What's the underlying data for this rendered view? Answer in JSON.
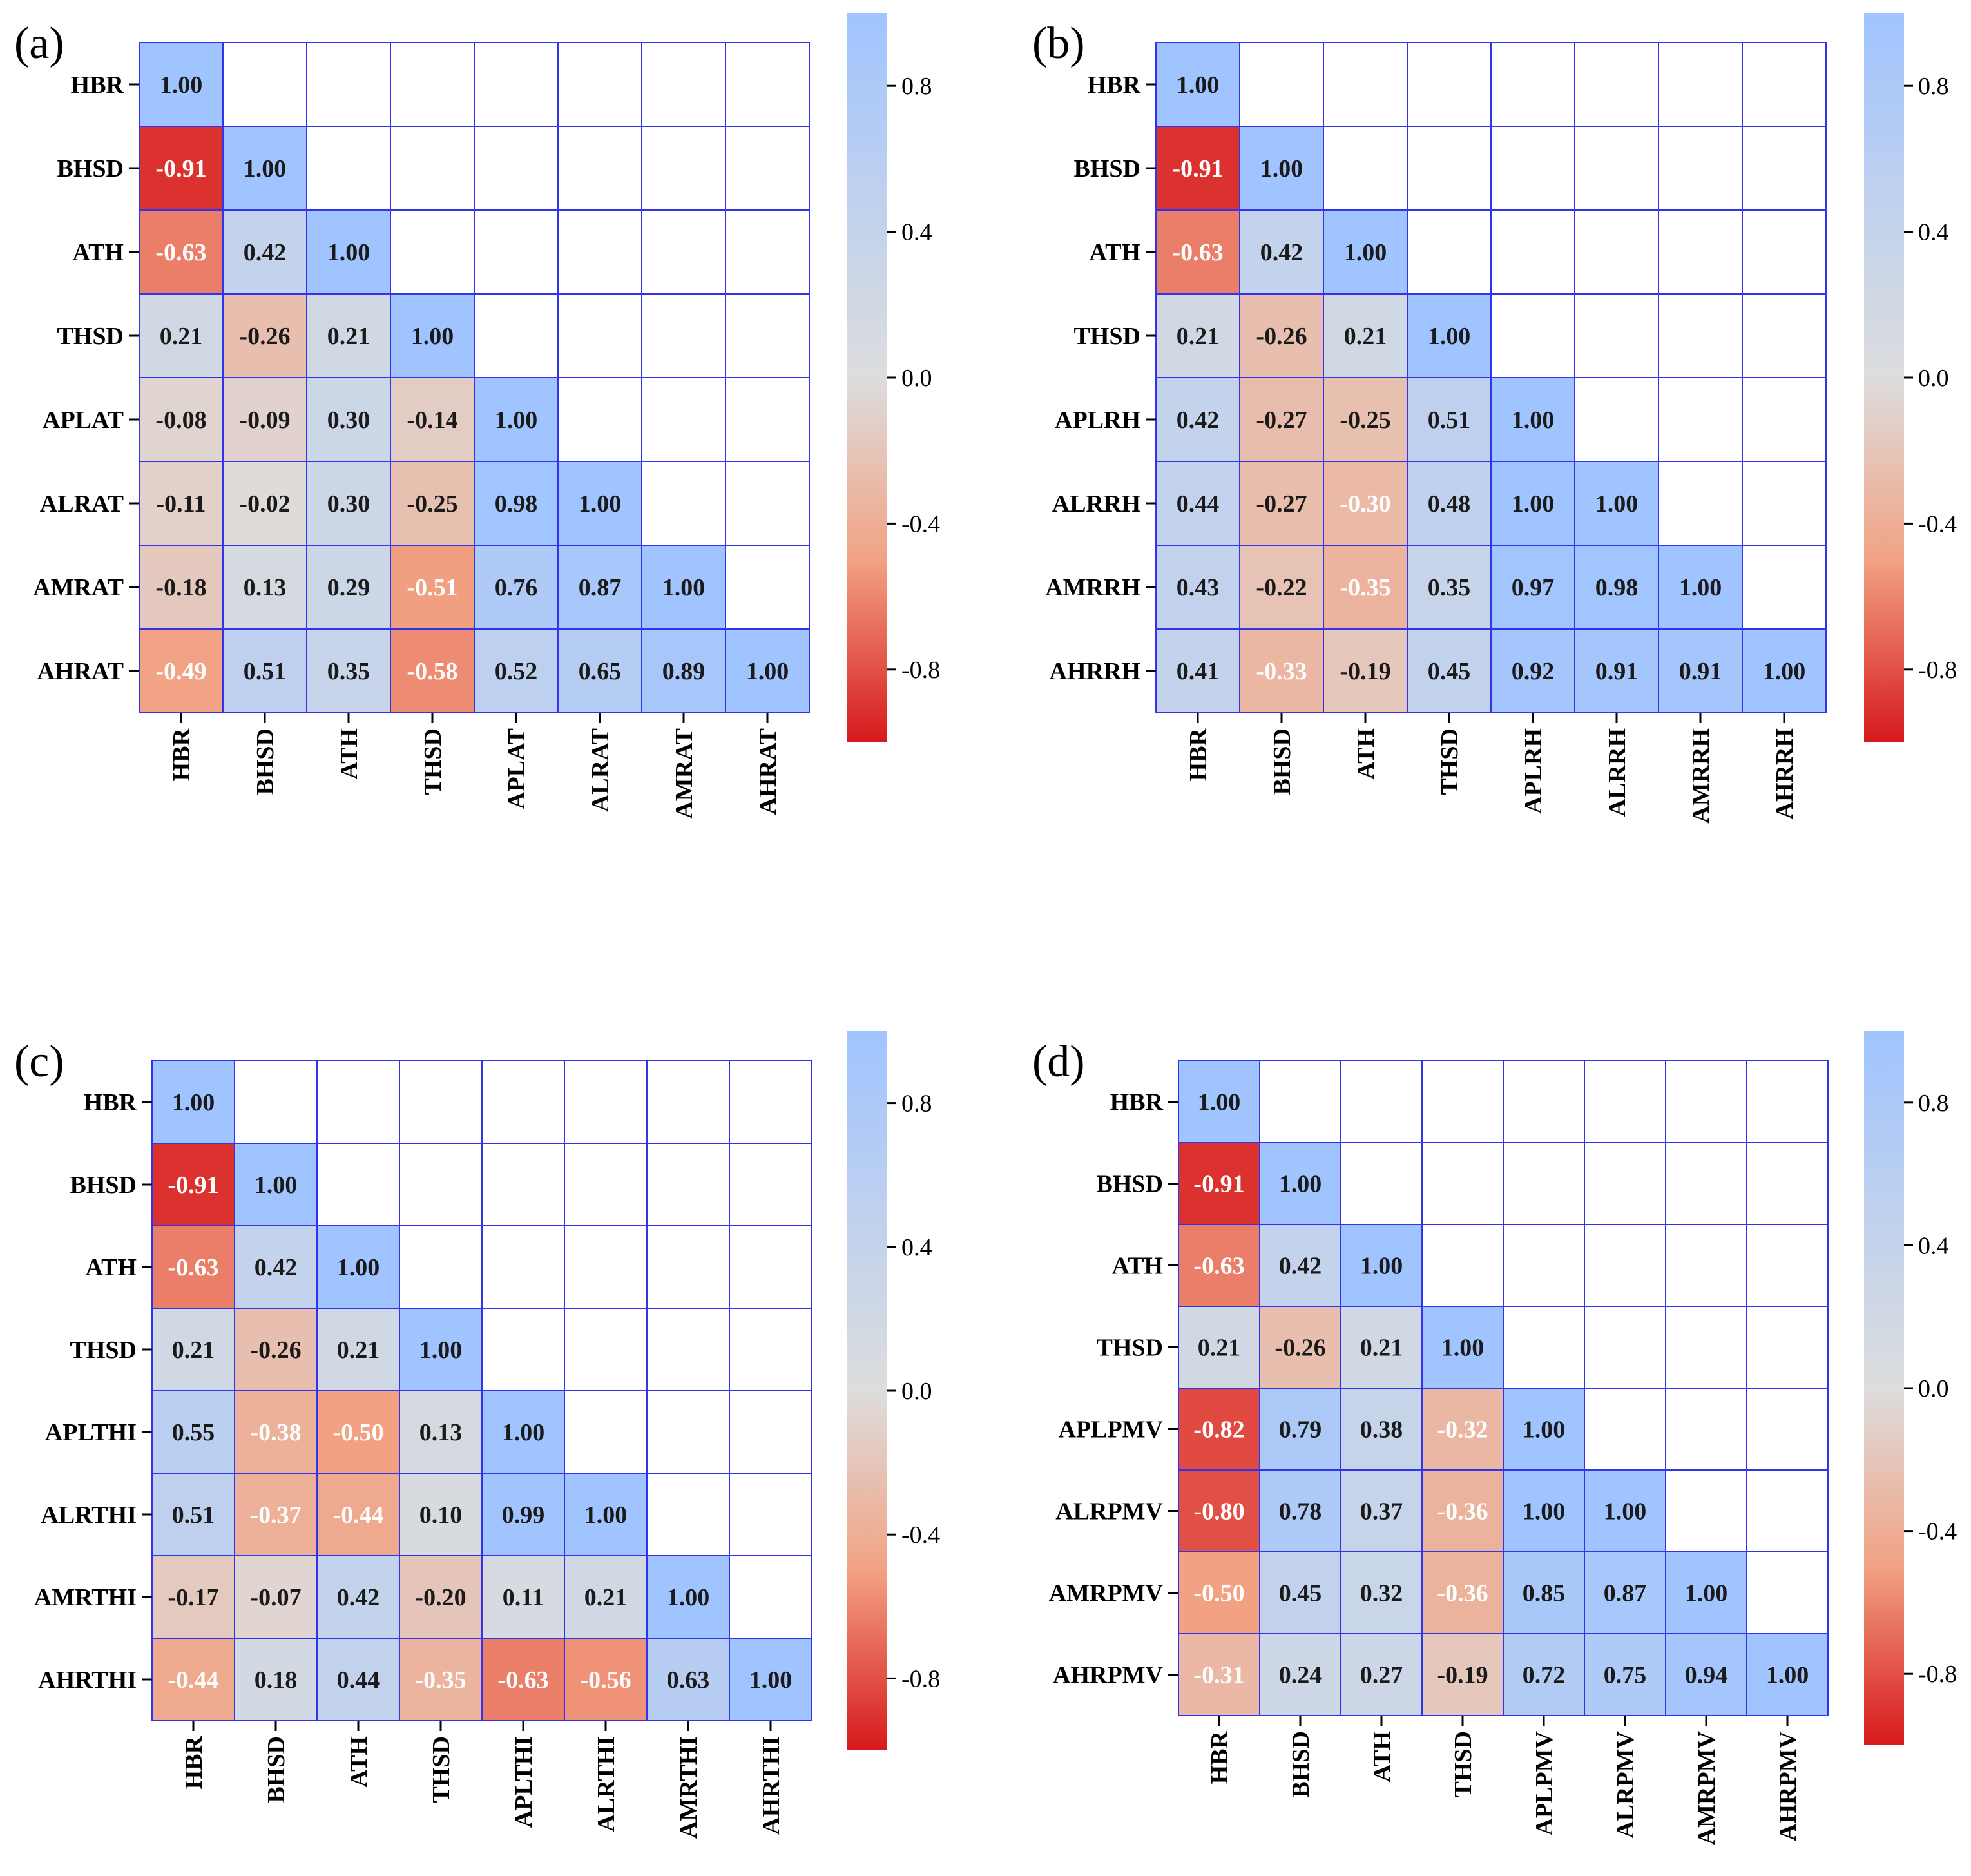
{
  "figure": {
    "colorscale": {
      "min": -1,
      "max": 1,
      "colors": {
        "neg": "#d7191c",
        "mid": "#dddddd",
        "pos": "#a0c4ff"
      },
      "ticks": [
        "0.8",
        "0.4",
        "0.0",
        "-0.4",
        "-0.8"
      ],
      "tick_values": [
        0.8,
        0.4,
        0.0,
        -0.4,
        -0.8
      ]
    },
    "grid_color": "#3333ee"
  },
  "chart_data": [
    {
      "type": "heatmap",
      "panel": "(a)",
      "variables": [
        "HBR",
        "BHSD",
        "ATH",
        "THSD",
        "APLAT",
        "ALRAT",
        "AMRAT",
        "AHRAT"
      ],
      "values": [
        [
          1.0
        ],
        [
          -0.91,
          1.0
        ],
        [
          -0.63,
          0.42,
          1.0
        ],
        [
          0.21,
          -0.26,
          0.21,
          1.0
        ],
        [
          -0.08,
          -0.09,
          0.3,
          -0.14,
          1.0
        ],
        [
          -0.11,
          -0.02,
          0.3,
          -0.25,
          0.98,
          1.0
        ],
        [
          -0.18,
          0.13,
          0.29,
          -0.51,
          0.76,
          0.87,
          1.0
        ],
        [
          -0.49,
          0.51,
          0.35,
          -0.58,
          0.52,
          0.65,
          0.89,
          1.0
        ]
      ]
    },
    {
      "type": "heatmap",
      "panel": "(b)",
      "variables": [
        "HBR",
        "BHSD",
        "ATH",
        "THSD",
        "APLRH",
        "ALRRH",
        "AMRRH",
        "AHRRH"
      ],
      "values": [
        [
          1.0
        ],
        [
          -0.91,
          1.0
        ],
        [
          -0.63,
          0.42,
          1.0
        ],
        [
          0.21,
          -0.26,
          0.21,
          1.0
        ],
        [
          0.42,
          -0.27,
          -0.25,
          0.51,
          1.0
        ],
        [
          0.44,
          -0.27,
          -0.3,
          0.48,
          1.0,
          1.0
        ],
        [
          0.43,
          -0.22,
          -0.35,
          0.35,
          0.97,
          0.98,
          1.0
        ],
        [
          0.41,
          -0.33,
          -0.19,
          0.45,
          0.92,
          0.91,
          0.91,
          1.0
        ]
      ]
    },
    {
      "type": "heatmap",
      "panel": "(c)",
      "variables": [
        "HBR",
        "BHSD",
        "ATH",
        "THSD",
        "APLTHI",
        "ALRTHI",
        "AMRTHI",
        "AHRTHI"
      ],
      "values": [
        [
          1.0
        ],
        [
          -0.91,
          1.0
        ],
        [
          -0.63,
          0.42,
          1.0
        ],
        [
          0.21,
          -0.26,
          0.21,
          1.0
        ],
        [
          0.55,
          -0.38,
          -0.5,
          0.13,
          1.0
        ],
        [
          0.51,
          -0.37,
          -0.44,
          0.1,
          0.99,
          1.0
        ],
        [
          -0.17,
          -0.07,
          0.42,
          -0.2,
          0.11,
          0.21,
          1.0
        ],
        [
          -0.44,
          0.18,
          0.44,
          -0.35,
          -0.63,
          -0.56,
          0.63,
          1.0
        ]
      ]
    },
    {
      "type": "heatmap",
      "panel": "(d)",
      "variables": [
        "HBR",
        "BHSD",
        "ATH",
        "THSD",
        "APLPMV",
        "ALRPMV",
        "AMRPMV",
        "AHRPMV"
      ],
      "values": [
        [
          1.0
        ],
        [
          -0.91,
          1.0
        ],
        [
          -0.63,
          0.42,
          1.0
        ],
        [
          0.21,
          -0.26,
          0.21,
          1.0
        ],
        [
          -0.82,
          0.79,
          0.38,
          -0.32,
          1.0
        ],
        [
          -0.8,
          0.78,
          0.37,
          -0.36,
          1.0,
          1.0
        ],
        [
          -0.5,
          0.45,
          0.32,
          -0.36,
          0.85,
          0.87,
          1.0
        ],
        [
          -0.31,
          0.24,
          0.27,
          -0.19,
          0.72,
          0.75,
          0.94,
          1.0
        ]
      ]
    }
  ]
}
